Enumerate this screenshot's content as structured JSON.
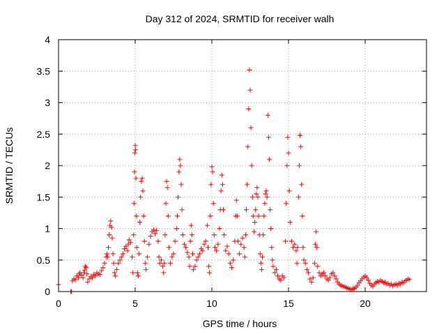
{
  "chart_data": {
    "type": "scatter",
    "title": "Day 312 of 2024, SRMTID for receiver walh",
    "xlabel": "GPS time / hours",
    "ylabel": "SRMTID / TECUs",
    "xlim": [
      0,
      24
    ],
    "ylim": [
      0,
      4
    ],
    "grid": true,
    "marker": "+",
    "color": "#ff0000",
    "xticks": [
      0,
      5,
      10,
      15,
      20
    ],
    "xtick_labels": [
      "0",
      "5",
      "10",
      "15",
      "20"
    ],
    "yticks": [
      0,
      0.5,
      1,
      1.5,
      2,
      2.5,
      3,
      3.5,
      4
    ],
    "ytick_labels": [
      "0",
      "0.5",
      "1",
      "1.5",
      "2",
      "2.5",
      "3",
      "3.5",
      "4"
    ],
    "series": [
      {
        "name": "SRMTID",
        "points": [
          [
            0.0,
            0.11
          ],
          [
            0.8,
            0.0
          ],
          [
            0.85,
            0.0
          ],
          [
            0.9,
            0.17
          ],
          [
            1.0,
            0.2
          ],
          [
            1.1,
            0.19
          ],
          [
            1.2,
            0.25
          ],
          [
            1.3,
            0.22
          ],
          [
            1.35,
            0.28
          ],
          [
            1.4,
            0.3
          ],
          [
            1.5,
            0.26
          ],
          [
            1.6,
            0.22
          ],
          [
            1.65,
            0.3
          ],
          [
            1.7,
            0.34
          ],
          [
            1.75,
            0.4
          ],
          [
            1.8,
            0.38
          ],
          [
            1.85,
            0.28
          ],
          [
            1.9,
            0.15
          ],
          [
            2.0,
            0.2
          ],
          [
            2.1,
            0.24
          ],
          [
            2.2,
            0.22
          ],
          [
            2.3,
            0.27
          ],
          [
            2.4,
            0.25
          ],
          [
            2.5,
            0.3
          ],
          [
            2.6,
            0.28
          ],
          [
            2.7,
            0.27
          ],
          [
            2.8,
            0.33
          ],
          [
            2.9,
            0.38
          ],
          [
            3.0,
            0.45
          ],
          [
            3.1,
            0.55
          ],
          [
            3.15,
            0.6
          ],
          [
            3.2,
            0.55
          ],
          [
            3.25,
            0.7
          ],
          [
            3.3,
            0.9
          ],
          [
            3.35,
            1.05
          ],
          [
            3.4,
            1.12
          ],
          [
            3.45,
            1.02
          ],
          [
            3.5,
            0.85
          ],
          [
            3.55,
            0.6
          ],
          [
            3.6,
            0.45
          ],
          [
            3.65,
            0.3
          ],
          [
            3.7,
            0.25
          ],
          [
            3.8,
            0.35
          ],
          [
            3.9,
            0.45
          ],
          [
            4.0,
            0.5
          ],
          [
            4.1,
            0.55
          ],
          [
            4.2,
            0.6
          ],
          [
            4.3,
            0.68
          ],
          [
            4.4,
            0.72
          ],
          [
            4.5,
            0.65
          ],
          [
            4.55,
            0.75
          ],
          [
            4.6,
            0.82
          ],
          [
            4.7,
            0.78
          ],
          [
            4.8,
            0.55
          ],
          [
            4.85,
            0.3
          ],
          [
            4.9,
            0.9
          ],
          [
            4.92,
            1.4
          ],
          [
            4.95,
            1.9
          ],
          [
            4.97,
            2.2
          ],
          [
            5.0,
            2.32
          ],
          [
            5.02,
            2.25
          ],
          [
            5.05,
            1.8
          ],
          [
            5.08,
            1.2
          ],
          [
            5.1,
            0.7
          ],
          [
            5.15,
            0.3
          ],
          [
            5.2,
            0.25
          ],
          [
            5.25,
            0.6
          ],
          [
            5.3,
            1.1
          ],
          [
            5.35,
            1.5
          ],
          [
            5.4,
            1.75
          ],
          [
            5.45,
            1.8
          ],
          [
            5.5,
            1.6
          ],
          [
            5.55,
            1.2
          ],
          [
            5.6,
            0.8
          ],
          [
            5.65,
            0.45
          ],
          [
            5.7,
            0.35
          ],
          [
            5.8,
            0.55
          ],
          [
            5.9,
            0.75
          ],
          [
            6.0,
            0.88
          ],
          [
            6.1,
            0.95
          ],
          [
            6.2,
            0.98
          ],
          [
            6.3,
            0.92
          ],
          [
            6.4,
            0.97
          ],
          [
            6.5,
            0.8
          ],
          [
            6.55,
            0.55
          ],
          [
            6.6,
            0.45
          ],
          [
            6.7,
            0.5
          ],
          [
            6.8,
            0.4
          ],
          [
            6.85,
            0.3
          ],
          [
            6.9,
            0.45
          ],
          [
            6.95,
            0.9
          ],
          [
            7.0,
            1.4
          ],
          [
            7.05,
            1.75
          ],
          [
            7.1,
            1.65
          ],
          [
            7.15,
            1.2
          ],
          [
            7.2,
            0.7
          ],
          [
            7.3,
            0.45
          ],
          [
            7.4,
            0.55
          ],
          [
            7.5,
            0.6
          ],
          [
            7.6,
            0.8
          ],
          [
            7.7,
            1.0
          ],
          [
            7.75,
            1.2
          ],
          [
            7.8,
            1.5
          ],
          [
            7.85,
            1.9
          ],
          [
            7.9,
            2.1
          ],
          [
            7.95,
            2.0
          ],
          [
            8.0,
            1.7
          ],
          [
            8.05,
            1.3
          ],
          [
            8.1,
            0.9
          ],
          [
            8.2,
            0.75
          ],
          [
            8.3,
            0.7
          ],
          [
            8.4,
            0.62
          ],
          [
            8.5,
            0.55
          ],
          [
            8.55,
            0.4
          ],
          [
            8.6,
            0.8
          ],
          [
            8.65,
            1.05
          ],
          [
            8.7,
            0.9
          ],
          [
            8.75,
            0.6
          ],
          [
            8.8,
            0.35
          ],
          [
            8.9,
            0.4
          ],
          [
            9.0,
            0.5
          ],
          [
            9.1,
            0.55
          ],
          [
            9.2,
            0.6
          ],
          [
            9.3,
            0.68
          ],
          [
            9.4,
            0.65
          ],
          [
            9.5,
            0.75
          ],
          [
            9.6,
            0.8
          ],
          [
            9.7,
            1.05
          ],
          [
            9.75,
            0.7
          ],
          [
            9.8,
            0.4
          ],
          [
            9.85,
            0.3
          ],
          [
            9.9,
            1.2
          ],
          [
            9.95,
            1.7
          ],
          [
            10.0,
            1.98
          ],
          [
            10.05,
            1.9
          ],
          [
            10.1,
            1.4
          ],
          [
            10.15,
            0.9
          ],
          [
            10.2,
            0.7
          ],
          [
            10.3,
            0.65
          ],
          [
            10.4,
            0.75
          ],
          [
            10.5,
            1.0
          ],
          [
            10.55,
            1.3
          ],
          [
            10.6,
            1.6
          ],
          [
            10.65,
            1.85
          ],
          [
            10.7,
            1.7
          ],
          [
            10.75,
            1.3
          ],
          [
            10.8,
            0.9
          ],
          [
            10.9,
            0.65
          ],
          [
            11.0,
            0.72
          ],
          [
            11.1,
            0.6
          ],
          [
            11.2,
            0.45
          ],
          [
            11.3,
            0.38
          ],
          [
            11.4,
            0.5
          ],
          [
            11.5,
            0.8
          ],
          [
            11.55,
            1.2
          ],
          [
            11.6,
            1.45
          ],
          [
            11.65,
            1.2
          ],
          [
            11.7,
            0.8
          ],
          [
            11.8,
            0.6
          ],
          [
            11.9,
            0.75
          ],
          [
            12.0,
            0.85
          ],
          [
            12.1,
            0.7
          ],
          [
            12.15,
            0.55
          ],
          [
            12.2,
            0.9
          ],
          [
            12.25,
            1.3
          ],
          [
            12.3,
            1.7
          ],
          [
            12.35,
            2.3
          ],
          [
            12.4,
            2.9
          ],
          [
            12.45,
            3.52
          ],
          [
            12.5,
            3.2
          ],
          [
            12.55,
            2.6
          ],
          [
            12.6,
            2.0
          ],
          [
            12.65,
            1.5
          ],
          [
            12.7,
            1.2
          ],
          [
            12.75,
            0.95
          ],
          [
            12.8,
            1.1
          ],
          [
            12.85,
            1.3
          ],
          [
            12.9,
            1.55
          ],
          [
            12.95,
            1.65
          ],
          [
            13.0,
            1.5
          ],
          [
            13.05,
            1.2
          ],
          [
            13.1,
            0.9
          ],
          [
            13.15,
            0.6
          ],
          [
            13.2,
            0.45
          ],
          [
            13.25,
            0.35
          ],
          [
            13.3,
            0.55
          ],
          [
            13.35,
            0.9
          ],
          [
            13.4,
            1.2
          ],
          [
            13.45,
            1.4
          ],
          [
            13.5,
            1.55
          ],
          [
            13.55,
            1.6
          ],
          [
            13.6,
            1.5
          ],
          [
            13.65,
            2.8
          ],
          [
            13.7,
            2.45
          ],
          [
            13.75,
            2.1
          ],
          [
            13.8,
            1.3
          ],
          [
            13.85,
            1.0
          ],
          [
            13.9,
            0.7
          ],
          [
            13.95,
            0.5
          ],
          [
            14.0,
            0.4
          ],
          [
            14.1,
            0.3
          ],
          [
            14.2,
            0.35
          ],
          [
            14.3,
            0.25
          ],
          [
            14.4,
            0.2
          ],
          [
            14.5,
            0.18
          ],
          [
            14.6,
            0.25
          ],
          [
            14.7,
            0.22
          ],
          [
            14.8,
            0.8
          ],
          [
            14.85,
            1.4
          ],
          [
            14.9,
            2.0
          ],
          [
            14.95,
            2.45
          ],
          [
            15.0,
            2.2
          ],
          [
            15.05,
            1.6
          ],
          [
            15.1,
            1.1
          ],
          [
            15.2,
            0.8
          ],
          [
            15.3,
            0.7
          ],
          [
            15.4,
            0.75
          ],
          [
            15.5,
            0.65
          ],
          [
            15.55,
            0.45
          ],
          [
            15.6,
            0.7
          ],
          [
            15.65,
            1.5
          ],
          [
            15.7,
            2.0
          ],
          [
            15.75,
            2.48
          ],
          [
            15.8,
            2.3
          ],
          [
            15.85,
            1.7
          ],
          [
            15.9,
            1.2
          ],
          [
            15.95,
            0.7
          ],
          [
            16.0,
            0.5
          ],
          [
            16.1,
            0.45
          ],
          [
            16.2,
            0.35
          ],
          [
            16.3,
            0.3
          ],
          [
            16.4,
            0.2
          ],
          [
            16.5,
            0.15
          ],
          [
            16.6,
            0.22
          ],
          [
            16.7,
            0.45
          ],
          [
            16.75,
            0.75
          ],
          [
            16.8,
            0.95
          ],
          [
            16.85,
            0.7
          ],
          [
            16.9,
            0.4
          ],
          [
            17.0,
            0.3
          ],
          [
            17.1,
            0.25
          ],
          [
            17.2,
            0.28
          ],
          [
            17.3,
            0.3
          ],
          [
            17.4,
            0.25
          ],
          [
            17.5,
            0.2
          ],
          [
            17.6,
            0.18
          ],
          [
            17.7,
            0.22
          ],
          [
            17.8,
            0.28
          ],
          [
            17.9,
            0.3
          ],
          [
            18.0,
            0.25
          ],
          [
            18.1,
            0.2
          ],
          [
            18.2,
            0.15
          ],
          [
            18.3,
            0.12
          ],
          [
            18.4,
            0.1
          ],
          [
            18.5,
            0.09
          ],
          [
            18.6,
            0.08
          ],
          [
            18.7,
            0.07
          ],
          [
            18.8,
            0.06
          ],
          [
            18.9,
            0.05
          ],
          [
            19.0,
            0.04
          ],
          [
            19.1,
            0.03
          ],
          [
            19.2,
            0.04
          ],
          [
            19.3,
            0.05
          ],
          [
            19.4,
            0.07
          ],
          [
            19.5,
            0.1
          ],
          [
            19.6,
            0.14
          ],
          [
            19.7,
            0.17
          ],
          [
            19.8,
            0.2
          ],
          [
            19.9,
            0.23
          ],
          [
            20.0,
            0.25
          ],
          [
            20.1,
            0.22
          ],
          [
            20.2,
            0.18
          ],
          [
            20.3,
            0.13
          ],
          [
            20.4,
            0.1
          ],
          [
            20.5,
            0.08
          ],
          [
            20.6,
            0.12
          ],
          [
            20.7,
            0.14
          ],
          [
            20.8,
            0.16
          ],
          [
            20.9,
            0.15
          ],
          [
            21.0,
            0.18
          ],
          [
            21.1,
            0.16
          ],
          [
            21.2,
            0.14
          ],
          [
            21.3,
            0.15
          ],
          [
            21.4,
            0.12
          ],
          [
            21.5,
            0.13
          ],
          [
            21.6,
            0.1
          ],
          [
            21.7,
            0.12
          ],
          [
            21.8,
            0.09
          ],
          [
            21.9,
            0.11
          ],
          [
            22.0,
            0.12
          ],
          [
            22.1,
            0.1
          ],
          [
            22.2,
            0.13
          ],
          [
            22.3,
            0.12
          ],
          [
            22.4,
            0.15
          ],
          [
            22.5,
            0.14
          ],
          [
            22.6,
            0.17
          ],
          [
            22.7,
            0.18
          ],
          [
            22.8,
            0.2
          ],
          [
            22.9,
            0.19
          ]
        ]
      }
    ]
  }
}
